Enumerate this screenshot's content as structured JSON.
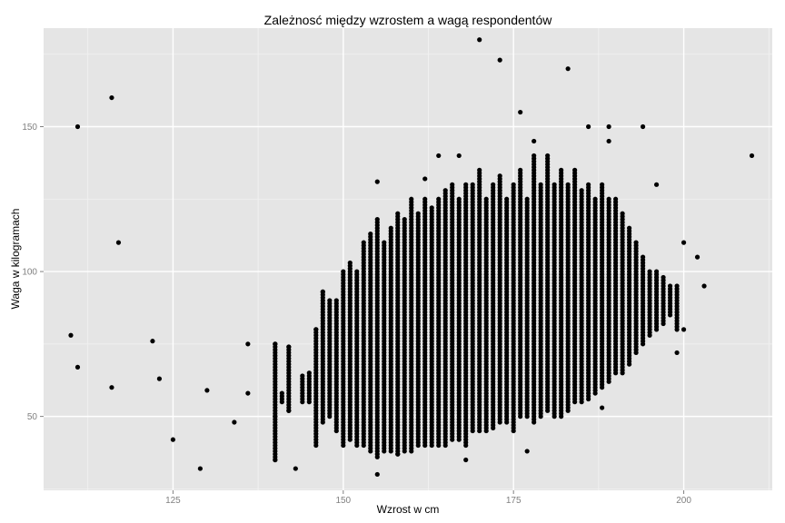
{
  "chart_data": {
    "type": "scatter",
    "title": "Zależnosć między wzrostem a wagą respondentów",
    "xlabel": "Wzrost w cm",
    "ylabel": "Waga w kilogramach",
    "xlim": [
      106,
      213
    ],
    "ylim": [
      24.5,
      184
    ],
    "xticks": [
      125,
      150,
      175,
      200
    ],
    "yticks": [
      50,
      100,
      150
    ],
    "grid": true,
    "colors": {
      "panel": "#e5e5e5",
      "grid_major": "#ffffff",
      "grid_minor": "#f2f2f2",
      "point": "#000000",
      "tick_label": "#808080"
    },
    "outliers": [
      {
        "x": 110,
        "y": 78
      },
      {
        "x": 111,
        "y": 150
      },
      {
        "x": 111,
        "y": 67
      },
      {
        "x": 116,
        "y": 160
      },
      {
        "x": 116,
        "y": 60
      },
      {
        "x": 117,
        "y": 110
      },
      {
        "x": 122,
        "y": 76
      },
      {
        "x": 123,
        "y": 63
      },
      {
        "x": 125,
        "y": 42
      },
      {
        "x": 129,
        "y": 32
      },
      {
        "x": 130,
        "y": 59
      },
      {
        "x": 134,
        "y": 48
      },
      {
        "x": 136,
        "y": 75
      },
      {
        "x": 136,
        "y": 58
      },
      {
        "x": 140,
        "y": 75
      },
      {
        "x": 140,
        "y": 35
      },
      {
        "x": 140,
        "y": 50
      },
      {
        "x": 142,
        "y": 74
      },
      {
        "x": 142,
        "y": 52
      },
      {
        "x": 143,
        "y": 32
      },
      {
        "x": 146,
        "y": 80
      },
      {
        "x": 147,
        "y": 93
      },
      {
        "x": 155,
        "y": 131
      },
      {
        "x": 155,
        "y": 30
      },
      {
        "x": 158,
        "y": 37
      },
      {
        "x": 162,
        "y": 132
      },
      {
        "x": 164,
        "y": 140
      },
      {
        "x": 167,
        "y": 140
      },
      {
        "x": 168,
        "y": 35
      },
      {
        "x": 170,
        "y": 180
      },
      {
        "x": 173,
        "y": 173
      },
      {
        "x": 176,
        "y": 155
      },
      {
        "x": 177,
        "y": 38
      },
      {
        "x": 178,
        "y": 145
      },
      {
        "x": 183,
        "y": 170
      },
      {
        "x": 186,
        "y": 150
      },
      {
        "x": 188,
        "y": 53
      },
      {
        "x": 189,
        "y": 150
      },
      {
        "x": 189,
        "y": 145
      },
      {
        "x": 194,
        "y": 150
      },
      {
        "x": 196,
        "y": 130
      },
      {
        "x": 199,
        "y": 72
      },
      {
        "x": 200,
        "y": 110
      },
      {
        "x": 200,
        "y": 80
      },
      {
        "x": 202,
        "y": 105
      },
      {
        "x": 203,
        "y": 95
      },
      {
        "x": 210,
        "y": 140
      }
    ],
    "bulk_columns": [
      {
        "x": 140,
        "min": 35,
        "max": 75
      },
      {
        "x": 141,
        "min": 55,
        "max": 58
      },
      {
        "x": 142,
        "min": 52,
        "max": 74
      },
      {
        "x": 144,
        "min": 55,
        "max": 64
      },
      {
        "x": 145,
        "min": 55,
        "max": 65
      },
      {
        "x": 146,
        "min": 40,
        "max": 80
      },
      {
        "x": 147,
        "min": 48,
        "max": 93
      },
      {
        "x": 148,
        "min": 50,
        "max": 90
      },
      {
        "x": 149,
        "min": 45,
        "max": 90
      },
      {
        "x": 150,
        "min": 40,
        "max": 100
      },
      {
        "x": 151,
        "min": 42,
        "max": 103
      },
      {
        "x": 152,
        "min": 40,
        "max": 100
      },
      {
        "x": 153,
        "min": 40,
        "max": 110
      },
      {
        "x": 154,
        "min": 38,
        "max": 113
      },
      {
        "x": 155,
        "min": 36,
        "max": 118
      },
      {
        "x": 156,
        "min": 38,
        "max": 110
      },
      {
        "x": 157,
        "min": 38,
        "max": 115
      },
      {
        "x": 158,
        "min": 37,
        "max": 120
      },
      {
        "x": 159,
        "min": 38,
        "max": 118
      },
      {
        "x": 160,
        "min": 38,
        "max": 125
      },
      {
        "x": 161,
        "min": 40,
        "max": 120
      },
      {
        "x": 162,
        "min": 40,
        "max": 125
      },
      {
        "x": 163,
        "min": 40,
        "max": 122
      },
      {
        "x": 164,
        "min": 40,
        "max": 125
      },
      {
        "x": 165,
        "min": 40,
        "max": 128
      },
      {
        "x": 166,
        "min": 42,
        "max": 130
      },
      {
        "x": 167,
        "min": 42,
        "max": 125
      },
      {
        "x": 168,
        "min": 40,
        "max": 130
      },
      {
        "x": 169,
        "min": 45,
        "max": 130
      },
      {
        "x": 170,
        "min": 45,
        "max": 135
      },
      {
        "x": 171,
        "min": 45,
        "max": 125
      },
      {
        "x": 172,
        "min": 46,
        "max": 130
      },
      {
        "x": 173,
        "min": 48,
        "max": 133
      },
      {
        "x": 174,
        "min": 48,
        "max": 125
      },
      {
        "x": 175,
        "min": 45,
        "max": 130
      },
      {
        "x": 176,
        "min": 50,
        "max": 135
      },
      {
        "x": 177,
        "min": 50,
        "max": 125
      },
      {
        "x": 178,
        "min": 48,
        "max": 140
      },
      {
        "x": 179,
        "min": 50,
        "max": 130
      },
      {
        "x": 180,
        "min": 52,
        "max": 140
      },
      {
        "x": 181,
        "min": 50,
        "max": 130
      },
      {
        "x": 182,
        "min": 50,
        "max": 135
      },
      {
        "x": 183,
        "min": 52,
        "max": 130
      },
      {
        "x": 184,
        "min": 55,
        "max": 135
      },
      {
        "x": 185,
        "min": 55,
        "max": 128
      },
      {
        "x": 186,
        "min": 56,
        "max": 130
      },
      {
        "x": 187,
        "min": 58,
        "max": 125
      },
      {
        "x": 188,
        "min": 60,
        "max": 130
      },
      {
        "x": 189,
        "min": 62,
        "max": 125
      },
      {
        "x": 190,
        "min": 65,
        "max": 125
      },
      {
        "x": 191,
        "min": 65,
        "max": 120
      },
      {
        "x": 192,
        "min": 68,
        "max": 115
      },
      {
        "x": 193,
        "min": 72,
        "max": 110
      },
      {
        "x": 194,
        "min": 75,
        "max": 105
      },
      {
        "x": 195,
        "min": 78,
        "max": 100
      },
      {
        "x": 196,
        "min": 80,
        "max": 100
      },
      {
        "x": 197,
        "min": 82,
        "max": 98
      },
      {
        "x": 198,
        "min": 85,
        "max": 95
      },
      {
        "x": 199,
        "min": 80,
        "max": 95
      }
    ]
  }
}
